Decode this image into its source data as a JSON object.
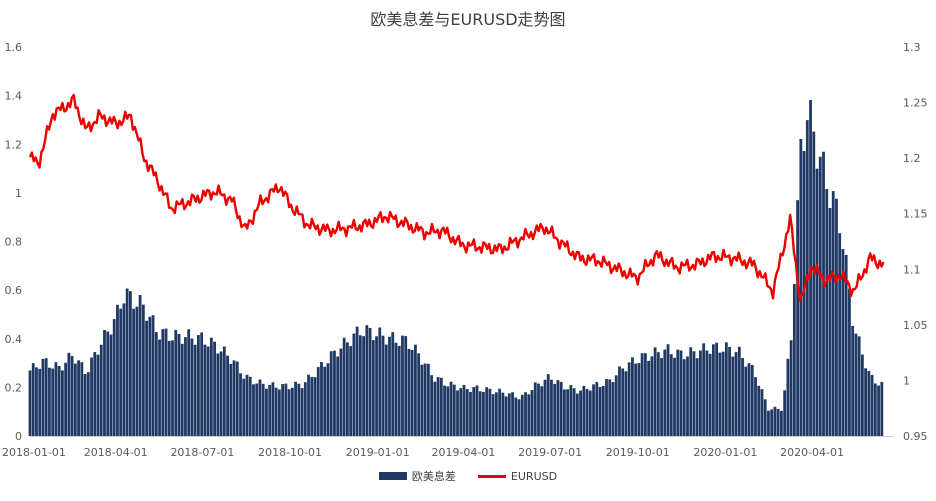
{
  "chart_data": {
    "type": "bar+line",
    "title": "欧美息差与EURUSD走势图",
    "x_ticks": [
      "2018-01-01",
      "2018-04-01",
      "2018-07-01",
      "2018-10-01",
      "2019-01-01",
      "2019-04-01",
      "2019-07-01",
      "2019-10-01",
      "2020-01-01",
      "2020-04-01"
    ],
    "y_left": {
      "lim": [
        0,
        1.6
      ],
      "ticks": [
        "0",
        "0.2",
        "0.4",
        "0.6",
        "0.8",
        "1",
        "1.2",
        "1.4",
        "1.6"
      ]
    },
    "y_right": {
      "lim": [
        0.95,
        1.3
      ],
      "ticks": [
        "0.95",
        "1",
        "1.05",
        "1.1",
        "1.15",
        "1.2",
        "1.25",
        "1.3"
      ]
    },
    "legend": {
      "position": "bottom",
      "items": [
        {
          "name": "欧美息差",
          "kind": "bar",
          "color": "#1f3864"
        },
        {
          "name": "EURUSD",
          "kind": "line",
          "color": "#ee0000"
        }
      ]
    },
    "series": [
      {
        "name": "欧美息差",
        "type": "bar",
        "axis": "left",
        "color": "#1f3864",
        "points": [
          [
            "2018-01-01",
            0.29
          ],
          [
            "2018-01-15",
            0.33
          ],
          [
            "2018-02-01",
            0.3
          ],
          [
            "2018-02-15",
            0.36
          ],
          [
            "2018-03-01",
            0.28
          ],
          [
            "2018-03-15",
            0.4
          ],
          [
            "2018-04-01",
            0.52
          ],
          [
            "2018-04-10",
            0.63
          ],
          [
            "2018-04-20",
            0.6
          ],
          [
            "2018-05-01",
            0.57
          ],
          [
            "2018-05-15",
            0.46
          ],
          [
            "2018-06-01",
            0.44
          ],
          [
            "2018-06-15",
            0.44
          ],
          [
            "2018-07-01",
            0.43
          ],
          [
            "2018-07-15",
            0.4
          ],
          [
            "2018-08-01",
            0.34
          ],
          [
            "2018-08-15",
            0.26
          ],
          [
            "2018-09-01",
            0.23
          ],
          [
            "2018-09-15",
            0.22
          ],
          [
            "2018-10-01",
            0.22
          ],
          [
            "2018-10-15",
            0.23
          ],
          [
            "2018-11-01",
            0.3
          ],
          [
            "2018-11-15",
            0.36
          ],
          [
            "2018-12-01",
            0.42
          ],
          [
            "2018-12-15",
            0.47
          ],
          [
            "2019-01-01",
            0.45
          ],
          [
            "2019-01-15",
            0.43
          ],
          [
            "2019-02-01",
            0.42
          ],
          [
            "2019-02-15",
            0.35
          ],
          [
            "2019-03-01",
            0.26
          ],
          [
            "2019-03-15",
            0.23
          ],
          [
            "2019-04-01",
            0.21
          ],
          [
            "2019-04-15",
            0.21
          ],
          [
            "2019-05-01",
            0.2
          ],
          [
            "2019-05-15",
            0.19
          ],
          [
            "2019-06-01",
            0.17
          ],
          [
            "2019-06-15",
            0.22
          ],
          [
            "2019-07-01",
            0.26
          ],
          [
            "2019-07-15",
            0.22
          ],
          [
            "2019-08-01",
            0.2
          ],
          [
            "2019-08-15",
            0.22
          ],
          [
            "2019-09-01",
            0.24
          ],
          [
            "2019-09-15",
            0.3
          ],
          [
            "2019-10-01",
            0.34
          ],
          [
            "2019-10-15",
            0.36
          ],
          [
            "2019-11-01",
            0.38
          ],
          [
            "2019-11-15",
            0.36
          ],
          [
            "2019-12-01",
            0.37
          ],
          [
            "2019-12-15",
            0.39
          ],
          [
            "2020-01-01",
            0.39
          ],
          [
            "2020-01-15",
            0.37
          ],
          [
            "2020-02-01",
            0.28
          ],
          [
            "2020-02-15",
            0.12
          ],
          [
            "2020-03-01",
            0.12
          ],
          [
            "2020-03-10",
            0.44
          ],
          [
            "2020-03-20",
            1.25
          ],
          [
            "2020-03-27",
            1.44
          ],
          [
            "2020-04-01",
            1.36
          ],
          [
            "2020-04-15",
            1.14
          ],
          [
            "2020-05-01",
            0.94
          ],
          [
            "2020-05-15",
            0.48
          ],
          [
            "2020-06-01",
            0.26
          ],
          [
            "2020-06-15",
            0.22
          ]
        ]
      },
      {
        "name": "EURUSD",
        "type": "line",
        "axis": "right",
        "color": "#ee0000",
        "points": [
          [
            "2018-01-01",
            1.201
          ],
          [
            "2018-01-10",
            1.195
          ],
          [
            "2018-01-25",
            1.24
          ],
          [
            "2018-02-05",
            1.245
          ],
          [
            "2018-02-16",
            1.252
          ],
          [
            "2018-03-01",
            1.225
          ],
          [
            "2018-03-15",
            1.238
          ],
          [
            "2018-04-01",
            1.231
          ],
          [
            "2018-04-17",
            1.238
          ],
          [
            "2018-05-01",
            1.2
          ],
          [
            "2018-05-15",
            1.18
          ],
          [
            "2018-05-29",
            1.155
          ],
          [
            "2018-06-15",
            1.16
          ],
          [
            "2018-07-01",
            1.166
          ],
          [
            "2018-07-15",
            1.17
          ],
          [
            "2018-08-01",
            1.162
          ],
          [
            "2018-08-15",
            1.135
          ],
          [
            "2018-08-31",
            1.16
          ],
          [
            "2018-09-20",
            1.175
          ],
          [
            "2018-10-01",
            1.158
          ],
          [
            "2018-10-20",
            1.14
          ],
          [
            "2018-11-10",
            1.135
          ],
          [
            "2018-12-01",
            1.137
          ],
          [
            "2018-12-20",
            1.14
          ],
          [
            "2019-01-10",
            1.148
          ],
          [
            "2019-02-01",
            1.14
          ],
          [
            "2019-02-20",
            1.133
          ],
          [
            "2019-03-10",
            1.135
          ],
          [
            "2019-03-30",
            1.122
          ],
          [
            "2019-04-20",
            1.12
          ],
          [
            "2019-05-10",
            1.118
          ],
          [
            "2019-06-01",
            1.128
          ],
          [
            "2019-06-25",
            1.138
          ],
          [
            "2019-07-15",
            1.122
          ],
          [
            "2019-08-01",
            1.11
          ],
          [
            "2019-08-20",
            1.108
          ],
          [
            "2019-09-10",
            1.1
          ],
          [
            "2019-09-30",
            1.092
          ],
          [
            "2019-10-20",
            1.113
          ],
          [
            "2019-11-10",
            1.102
          ],
          [
            "2019-12-01",
            1.104
          ],
          [
            "2019-12-20",
            1.112
          ],
          [
            "2020-01-10",
            1.11
          ],
          [
            "2020-01-31",
            1.104
          ],
          [
            "2020-02-20",
            1.08
          ],
          [
            "2020-03-09",
            1.145
          ],
          [
            "2020-03-20",
            1.07
          ],
          [
            "2020-03-31",
            1.103
          ],
          [
            "2020-04-15",
            1.09
          ],
          [
            "2020-05-01",
            1.095
          ],
          [
            "2020-05-15",
            1.08
          ],
          [
            "2020-06-01",
            1.11
          ],
          [
            "2020-06-15",
            1.104
          ]
        ]
      }
    ],
    "grid": false
  }
}
